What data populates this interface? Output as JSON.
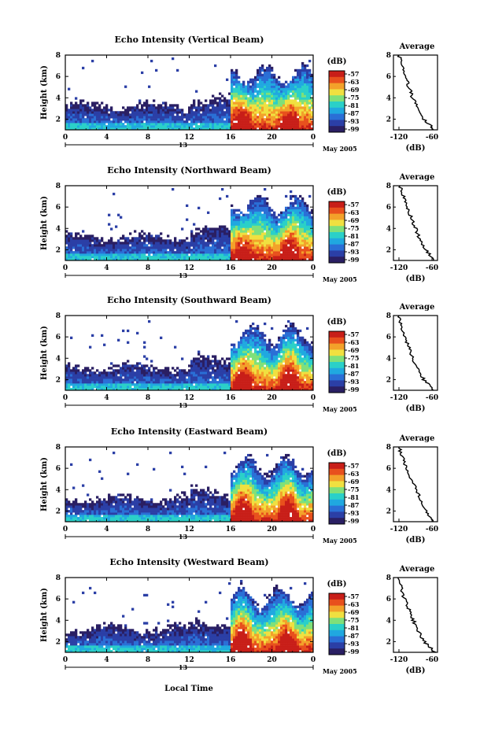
{
  "figure": {
    "xlabel": "Local Time",
    "date_label": "May 2005",
    "day_label": "13",
    "colorbar_unit": "(dB)",
    "colorbar_ticks": [
      "-57",
      "-63",
      "-69",
      "-75",
      "-81",
      "-87",
      "-93",
      "-99"
    ],
    "average_title": "Average",
    "average_xlabel": "(dB)",
    "average_xticks": [
      "-120",
      "-60"
    ],
    "ylabel": "Height (km)",
    "colormap": [
      "#2a1f63",
      "#2b3fa6",
      "#2a6fd6",
      "#20a8e0",
      "#2ad0c8",
      "#7fe07a",
      "#f0e040",
      "#f3a12a",
      "#e8501d",
      "#c81e18"
    ]
  },
  "chart_data": [
    {
      "type": "heatmap",
      "title": "Echo Intensity (Vertical Beam)",
      "xlabel": "Local Time",
      "ylabel": "Height (km)",
      "xlim": [
        0,
        24
      ],
      "xticks": [
        "0",
        "4",
        "8",
        "12",
        "16",
        "20",
        "0"
      ],
      "ylim": [
        1,
        8
      ],
      "yticks": [
        "2",
        "4",
        "6",
        "8"
      ],
      "value_range_db": [
        -99,
        -57
      ],
      "profile": {
        "heights_km": [
          1,
          2,
          3,
          4,
          5,
          6,
          7,
          8
        ],
        "echo_db": [
          -55,
          -75,
          -85,
          -95,
          -102,
          -108,
          -115,
          -120
        ]
      }
    },
    {
      "type": "heatmap",
      "title": "Echo Intensity (Northward Beam)",
      "xlabel": "Local Time",
      "ylabel": "Height (km)",
      "xlim": [
        0,
        24
      ],
      "xticks": [
        "0",
        "4",
        "8",
        "12",
        "16",
        "20",
        "0"
      ],
      "ylim": [
        1,
        8
      ],
      "yticks": [
        "2",
        "4",
        "6",
        "8"
      ],
      "value_range_db": [
        -99,
        -57
      ],
      "profile": {
        "heights_km": [
          1,
          2,
          3,
          4,
          5,
          6,
          7,
          8
        ],
        "echo_db": [
          -55,
          -72,
          -82,
          -90,
          -98,
          -105,
          -112,
          -118
        ]
      }
    },
    {
      "type": "heatmap",
      "title": "Echo Intensity (Southward Beam)",
      "xlabel": "Local Time",
      "ylabel": "Height (km)",
      "xlim": [
        0,
        24
      ],
      "xticks": [
        "0",
        "4",
        "8",
        "12",
        "16",
        "20",
        "0"
      ],
      "ylim": [
        1,
        8
      ],
      "yticks": [
        "2",
        "4",
        "6",
        "8"
      ],
      "value_range_db": [
        -99,
        -57
      ],
      "profile": {
        "heights_km": [
          1,
          2,
          3,
          4,
          5,
          6,
          7,
          8
        ],
        "echo_db": [
          -55,
          -75,
          -86,
          -95,
          -102,
          -110,
          -116,
          -120
        ]
      }
    },
    {
      "type": "heatmap",
      "title": "Echo Intensity (Eastward Beam)",
      "xlabel": "Local Time",
      "ylabel": "Height (km)",
      "xlim": [
        0,
        24
      ],
      "xticks": [
        "0",
        "4",
        "8",
        "12",
        "16",
        "20",
        "0"
      ],
      "ylim": [
        1,
        8
      ],
      "yticks": [
        "2",
        "4",
        "6",
        "8"
      ],
      "value_range_db": [
        -99,
        -57
      ],
      "profile": {
        "heights_km": [
          1,
          2,
          3,
          4,
          5,
          6,
          7,
          8
        ],
        "echo_db": [
          -55,
          -72,
          -80,
          -88,
          -98,
          -106,
          -114,
          -120
        ]
      }
    },
    {
      "type": "heatmap",
      "title": "Echo Intensity (Westward Beam)",
      "xlabel": "Local Time",
      "ylabel": "Height (km)",
      "xlim": [
        0,
        24
      ],
      "xticks": [
        "0",
        "4",
        "8",
        "12",
        "16",
        "20",
        "0"
      ],
      "ylim": [
        1,
        8
      ],
      "yticks": [
        "2",
        "4",
        "6",
        "8"
      ],
      "value_range_db": [
        -99,
        -57
      ],
      "profile": {
        "heights_km": [
          1,
          2,
          3,
          4,
          5,
          6,
          7,
          8
        ],
        "echo_db": [
          -55,
          -74,
          -85,
          -94,
          -102,
          -110,
          -116,
          -122
        ]
      }
    }
  ]
}
